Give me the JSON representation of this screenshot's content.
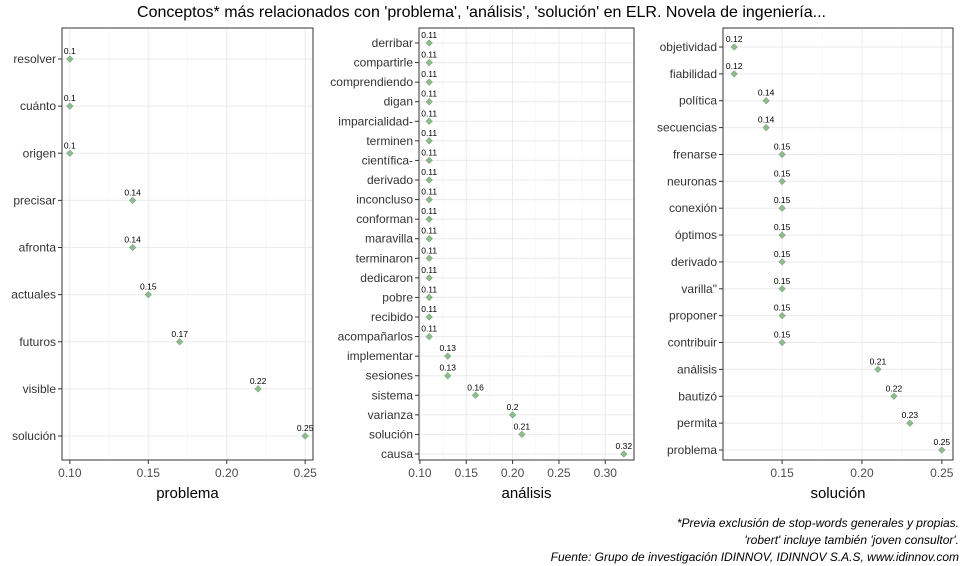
{
  "title": "Conceptos* más relacionados con 'problema', 'análisis', 'solución' en ELR. Novela de ingeniería...",
  "captions": {
    "line1": "*Previa exclusión de stop-words generales y propias.",
    "line2": "'robert' incluye también 'joven consultor'.",
    "line3": "Fuente: Grupo de investigación IDINNOV, IDINNOV S.A.S, www.idinnov.com"
  },
  "colors": {
    "point": "#8fbc8f",
    "grid": "#ebebeb",
    "axis": "#333333",
    "text": "#000000"
  },
  "chart_data": [
    {
      "type": "scatter",
      "xlabel": "problema",
      "xlim": [
        0.095,
        0.255
      ],
      "xticks": [
        "0.10",
        "0.15",
        "0.20",
        "0.25"
      ],
      "xtick_values": [
        0.1,
        0.15,
        0.2,
        0.25
      ],
      "grid": true,
      "categories": [
        "resolver",
        "cuánto",
        "origen",
        "precisar",
        "afronta",
        "actuales",
        "futuros",
        "visible",
        "solución"
      ],
      "values": [
        0.1,
        0.1,
        0.1,
        0.14,
        0.14,
        0.15,
        0.17,
        0.22,
        0.25
      ],
      "value_labels": [
        "0.1",
        "0.1",
        "0.1",
        "0.14",
        "0.14",
        "0.15",
        "0.17",
        "0.22",
        "0.25"
      ]
    },
    {
      "type": "scatter",
      "xlabel": "análisis",
      "xlim": [
        0.099,
        0.331
      ],
      "xticks": [
        "0.10",
        "0.15",
        "0.20",
        "0.25",
        "0.30"
      ],
      "xtick_values": [
        0.1,
        0.15,
        0.2,
        0.25,
        0.3
      ],
      "grid": true,
      "categories": [
        "derribar",
        "compartirle",
        "comprendiendo",
        "digan",
        "imparcialidad-",
        "terminen",
        "científica-",
        "derivado",
        "inconcluso",
        "conforman",
        "maravilla",
        "terminaron",
        "dedicaron",
        "pobre",
        "recibido",
        "acompañarlos",
        "implementar",
        "sesiones",
        "sistema",
        "varianza",
        "solución",
        "causa"
      ],
      "values": [
        0.11,
        0.11,
        0.11,
        0.11,
        0.11,
        0.11,
        0.11,
        0.11,
        0.11,
        0.11,
        0.11,
        0.11,
        0.11,
        0.11,
        0.11,
        0.11,
        0.13,
        0.13,
        0.16,
        0.2,
        0.21,
        0.32
      ],
      "value_labels": [
        "0.11",
        "0.11",
        "0.11",
        "0.11",
        "0.11",
        "0.11",
        "0.11",
        "0.11",
        "0.11",
        "0.11",
        "0.11",
        "0.11",
        "0.11",
        "0.11",
        "0.11",
        "0.11",
        "0.13",
        "0.13",
        "0.16",
        "0.2",
        "0.21",
        "0.32"
      ]
    },
    {
      "type": "scatter",
      "xlabel": "solución",
      "xlim": [
        0.113,
        0.257
      ],
      "xticks": [
        "0.15",
        "0.20",
        "0.25"
      ],
      "xtick_values": [
        0.15,
        0.2,
        0.25
      ],
      "grid": true,
      "categories": [
        "objetividad",
        "fiabilidad",
        "política",
        "secuencias",
        "frenarse",
        "neuronas",
        "conexión",
        "óptimos",
        "derivado",
        "varilla\"",
        "proponer",
        "contribuir",
        "análisis",
        "bautizó",
        "permita",
        "problema"
      ],
      "values": [
        0.12,
        0.12,
        0.14,
        0.14,
        0.15,
        0.15,
        0.15,
        0.15,
        0.15,
        0.15,
        0.15,
        0.15,
        0.21,
        0.22,
        0.23,
        0.25
      ],
      "value_labels": [
        "0.12",
        "0.12",
        "0.14",
        "0.14",
        "0.15",
        "0.15",
        "0.15",
        "0.15",
        "0.15",
        "0.15",
        "0.15",
        "0.15",
        "0.21",
        "0.22",
        "0.23",
        "0.25"
      ]
    }
  ]
}
